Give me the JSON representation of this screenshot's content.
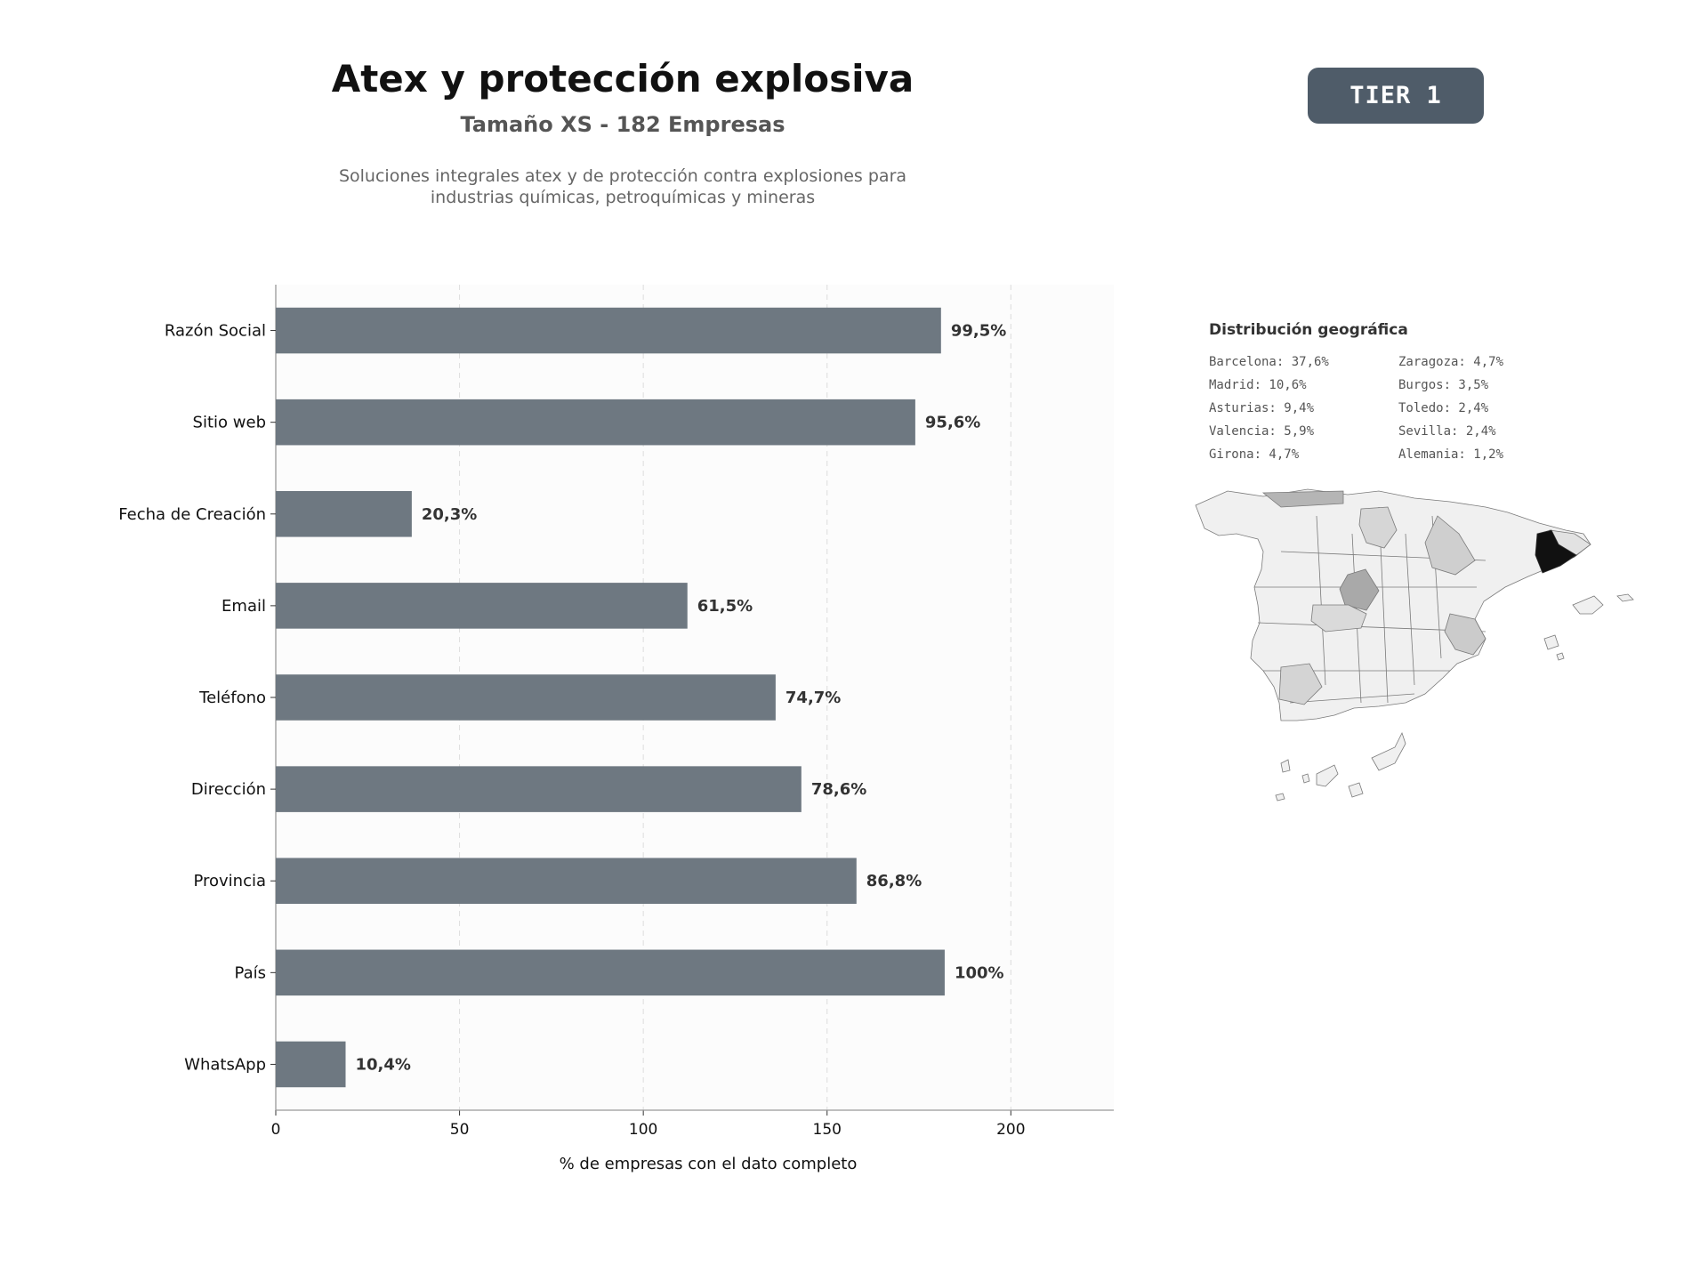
{
  "header": {
    "title": "Atex y protección explosiva",
    "subtitle": "Tamaño XS - 182 Empresas",
    "description_line1": "Soluciones integrales atex y de protección contra explosiones para",
    "description_line2": "industrias químicas, petroquímicas y mineras",
    "tier_label": "TIER 1"
  },
  "chart_data": {
    "type": "bar",
    "orientation": "horizontal",
    "categories": [
      "Razón Social",
      "Sitio web",
      "Fecha de Creación",
      "Email",
      "Teléfono",
      "Dirección",
      "Provincia",
      "País",
      "WhatsApp"
    ],
    "values": [
      181,
      174,
      37,
      112,
      136,
      143,
      158,
      182,
      19
    ],
    "data_labels": [
      "99,5%",
      "95,6%",
      "20,3%",
      "61,5%",
      "74,7%",
      "78,6%",
      "86,8%",
      "100%",
      "10,4%"
    ],
    "xlabel": "% de empresas con el dato completo",
    "ylabel": "",
    "xlim": [
      0,
      228
    ],
    "xticks": [
      0,
      50,
      100,
      150,
      200
    ],
    "grid": "vertical dashed",
    "bar_color": "#6e7881"
  },
  "geo": {
    "title": "Distribución geográfica",
    "items": [
      "Barcelona: 37,6%",
      "Zaragoza: 4,7%",
      "Madrid: 10,6%",
      "Burgos: 3,5%",
      "Asturias: 9,4%",
      "Toledo: 2,4%",
      "Valencia: 5,9%",
      "Sevilla: 2,4%",
      "Girona: 4,7%",
      "Alemania: 1,2%"
    ],
    "map_highlight_color": "#111111"
  }
}
